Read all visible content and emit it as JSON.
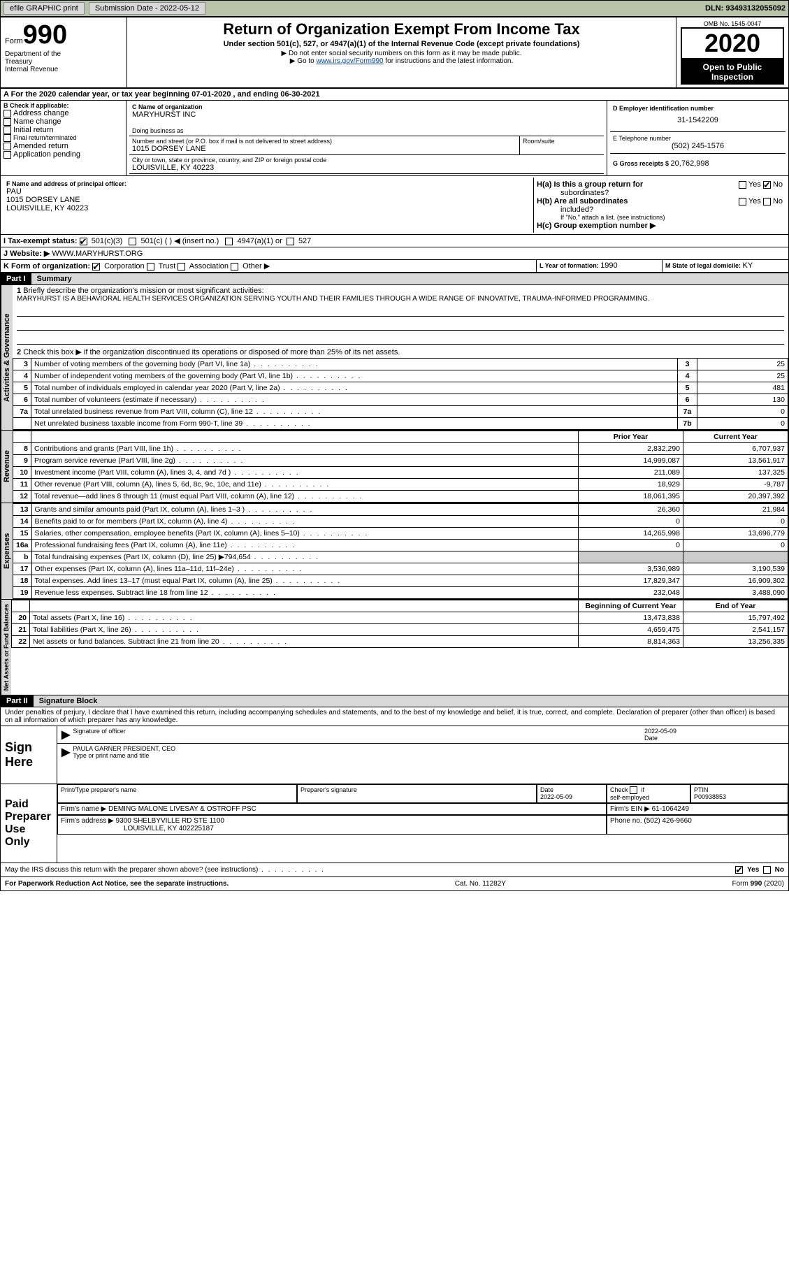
{
  "topbar": {
    "efile": "efile GRAPHIC print",
    "submission_label": "Submission Date - ",
    "submission_date": "2022-05-12",
    "dln_label": "DLN: ",
    "dln": "93493132055092"
  },
  "header": {
    "form_word": "Form",
    "form_num": "990",
    "dept1": "Department of the",
    "dept2": "Treasury",
    "dept3": "Internal Revenue",
    "title": "Return of Organization Exempt From Income Tax",
    "sub1": "Under section 501(c), 527, or 4947(a)(1) of the Internal Revenue Code (except private foundations)",
    "sub2": "▶ Do not enter social security numbers on this form as it may be made public.",
    "sub3a": "▶ Go to ",
    "sub3link": "www.irs.gov/Form990",
    "sub3b": " for instructions and the latest information.",
    "omb_label": "OMB No. ",
    "omb": "1545-0047",
    "year": "2020",
    "open1": "Open to Public",
    "open2": "Inspection"
  },
  "period": {
    "a_line": "A For the 2020 calendar year, or tax year beginning 07-01-2020    , and ending 06-30-2021"
  },
  "boxB": {
    "title": "B Check if applicable:",
    "items": [
      "Address change",
      "Name change",
      "Initial return",
      "Final return/terminated",
      "Amended return",
      "Application pending"
    ]
  },
  "boxC": {
    "label": "C Name of organization",
    "name": "MARYHURST INC",
    "dba_label": "Doing business as",
    "addr_label": "Number and street (or P.O. box if mail is not delivered to street address)",
    "addr": "1015 DORSEY LANE",
    "room_label": "Room/suite",
    "city_label": "City or town, state or province, country, and ZIP or foreign postal code",
    "city": "LOUISVILLE, KY  40223"
  },
  "boxD": {
    "label": "D Employer identification number",
    "ein": "31-1542209"
  },
  "boxE": {
    "label": "E Telephone number",
    "phone": "(502) 245-1576"
  },
  "boxG": {
    "label": "G Gross receipts $ ",
    "val": "20,762,998"
  },
  "boxF": {
    "label": "F Name and address of principal officer:",
    "name": "PAU",
    "addr1": "1015 DORSEY LANE",
    "addr2": "LOUISVILLE, KY  40223"
  },
  "boxH": {
    "a_label": "H(a)  Is this a group return for",
    "a_sub": "subordinates?",
    "yes": "Yes",
    "no": "No",
    "b_label": "H(b)  Are all subordinates",
    "b_sub": "included?",
    "b_note": "If \"No,\" attach a list. (see instructions)",
    "c_label": "H(c)  Group exemption number ▶"
  },
  "boxI": {
    "label": "I    Tax-exempt status:",
    "opt1": "501(c)(3)",
    "opt2": "501(c) (  ) ◀ (insert no.)",
    "opt3": "4947(a)(1) or",
    "opt4": "527"
  },
  "boxJ": {
    "label": "J   Website: ▶  ",
    "url": "WWW.MARYHURST.ORG"
  },
  "boxK": {
    "label": "K Form of organization:",
    "opt1": "Corporation",
    "opt2": "Trust",
    "opt3": "Association",
    "opt4": "Other ▶"
  },
  "boxL": {
    "label": "L Year of formation: ",
    "val": "1990"
  },
  "boxM": {
    "label": "M State of legal domicile: ",
    "val": "KY"
  },
  "part1": {
    "hdr": "Part I",
    "title": "Summary",
    "q1": "Briefly describe the organization's mission or most significant activities:",
    "mission": "MARYHURST IS A BEHAVIORAL HEALTH SERVICES ORGANIZATION SERVING YOUTH AND THEIR FAMILIES THROUGH A WIDE RANGE OF INNOVATIVE, TRAUMA-INFORMED PROGRAMMING.",
    "q2": "Check this box ▶       if the organization discontinued its operations or disposed of more than 25% of its net assets.",
    "gov_tab": "Activities & Governance",
    "rev_tab": "Revenue",
    "exp_tab": "Expenses",
    "net_tab": "Net Assets or Fund Balances",
    "rows_gov": [
      {
        "n": "3",
        "t": "Number of voting members of the governing body (Part VI, line 1a)",
        "b": "3",
        "v": "25"
      },
      {
        "n": "4",
        "t": "Number of independent voting members of the governing body (Part VI, line 1b)",
        "b": "4",
        "v": "25"
      },
      {
        "n": "5",
        "t": "Total number of individuals employed in calendar year 2020 (Part V, line 2a)",
        "b": "5",
        "v": "481"
      },
      {
        "n": "6",
        "t": "Total number of volunteers (estimate if necessary)",
        "b": "6",
        "v": "130"
      },
      {
        "n": "7a",
        "t": "Total unrelated business revenue from Part VIII, column (C), line 12",
        "b": "7a",
        "v": "0"
      },
      {
        "n": "",
        "t": "Net unrelated business taxable income from Form 990-T, line 39",
        "b": "7b",
        "v": "0"
      }
    ],
    "col_headers": {
      "prior": "Prior Year",
      "current": "Current Year"
    },
    "rows_rev": [
      {
        "n": "8",
        "t": "Contributions and grants (Part VIII, line 1h)",
        "p": "2,832,290",
        "c": "6,707,937"
      },
      {
        "n": "9",
        "t": "Program service revenue (Part VIII, line 2g)",
        "p": "14,999,087",
        "c": "13,561,917"
      },
      {
        "n": "10",
        "t": "Investment income (Part VIII, column (A), lines 3, 4, and 7d )",
        "p": "211,089",
        "c": "137,325"
      },
      {
        "n": "11",
        "t": "Other revenue (Part VIII, column (A), lines 5, 6d, 8c, 9c, 10c, and 11e)",
        "p": "18,929",
        "c": "-9,787"
      },
      {
        "n": "12",
        "t": "Total revenue—add lines 8 through 11 (must equal Part VIII, column (A), line 12)",
        "p": "18,061,395",
        "c": "20,397,392"
      }
    ],
    "rows_exp": [
      {
        "n": "13",
        "t": "Grants and similar amounts paid (Part IX, column (A), lines 1–3 )",
        "p": "26,360",
        "c": "21,984"
      },
      {
        "n": "14",
        "t": "Benefits paid to or for members (Part IX, column (A), line 4)",
        "p": "0",
        "c": "0"
      },
      {
        "n": "15",
        "t": "Salaries, other compensation, employee benefits (Part IX, column (A), lines 5–10)",
        "p": "14,265,998",
        "c": "13,696,779"
      },
      {
        "n": "16a",
        "t": "Professional fundraising fees (Part IX, column (A), line 11e)",
        "p": "0",
        "c": "0"
      },
      {
        "n": "b",
        "t": "Total fundraising expenses (Part IX, column (D), line 25) ▶794,654",
        "p": "",
        "c": "",
        "shade": true
      },
      {
        "n": "17",
        "t": "Other expenses (Part IX, column (A), lines 11a–11d, 11f–24e)",
        "p": "3,536,989",
        "c": "3,190,539"
      },
      {
        "n": "18",
        "t": "Total expenses. Add lines 13–17 (must equal Part IX, column (A), line 25)",
        "p": "17,829,347",
        "c": "16,909,302"
      },
      {
        "n": "19",
        "t": "Revenue less expenses. Subtract line 18 from line 12",
        "p": "232,048",
        "c": "3,488,090"
      }
    ],
    "col_headers2": {
      "begin": "Beginning of Current Year",
      "end": "End of Year"
    },
    "rows_net": [
      {
        "n": "20",
        "t": "Total assets (Part X, line 16)",
        "p": "13,473,838",
        "c": "15,797,492"
      },
      {
        "n": "21",
        "t": "Total liabilities (Part X, line 26)",
        "p": "4,659,475",
        "c": "2,541,157"
      },
      {
        "n": "22",
        "t": "Net assets or fund balances. Subtract line 21 from line 20",
        "p": "8,814,363",
        "c": "13,256,335"
      }
    ]
  },
  "part2": {
    "hdr": "Part II",
    "title": "Signature Block",
    "decl": "Under penalties of perjury, I declare that I have examined this return, including accompanying schedules and statements, and to the best of my knowledge and belief, it is true, correct, and complete. Declaration of preparer (other than officer) is based on all information of which preparer has any knowledge."
  },
  "sign": {
    "label": "Sign Here",
    "sig_label": "Signature of officer",
    "date_label": "Date",
    "date": "2022-05-09",
    "name": "PAULA GARNER  PRESIDENT, CEO",
    "name_label": "Type or print name and title"
  },
  "preparer": {
    "label": "Paid Preparer Use Only",
    "h1": "Print/Type preparer's name",
    "h2": "Preparer's signature",
    "h3_label": "Date",
    "h3": "2022-05-09",
    "h4a": "Check",
    "h4b": "if",
    "h4c": "self-employed",
    "h5_label": "PTIN",
    "h5": "P00938853",
    "firm_name_label": "Firm's name      ▶ ",
    "firm_name": "DEMING MALONE LIVESAY & OSTROFF PSC",
    "firm_ein_label": "Firm's EIN ▶ ",
    "firm_ein": "61-1064249",
    "firm_addr_label": "Firm's address ▶ ",
    "firm_addr1": "9300 SHELBYVILLE RD STE 1100",
    "firm_addr2": "LOUISVILLE, KY  402225187",
    "phone_label": "Phone no. ",
    "phone": "(502) 426-9660"
  },
  "discuss": {
    "q": "May the IRS discuss this return with the preparer shown above? (see instructions)",
    "yes": "Yes",
    "no": "No"
  },
  "footer": {
    "left": "For Paperwork Reduction Act Notice, see the separate instructions.",
    "mid": "Cat. No. 11282Y",
    "right_a": "Form ",
    "right_b": "990",
    "right_c": " (2020)"
  }
}
